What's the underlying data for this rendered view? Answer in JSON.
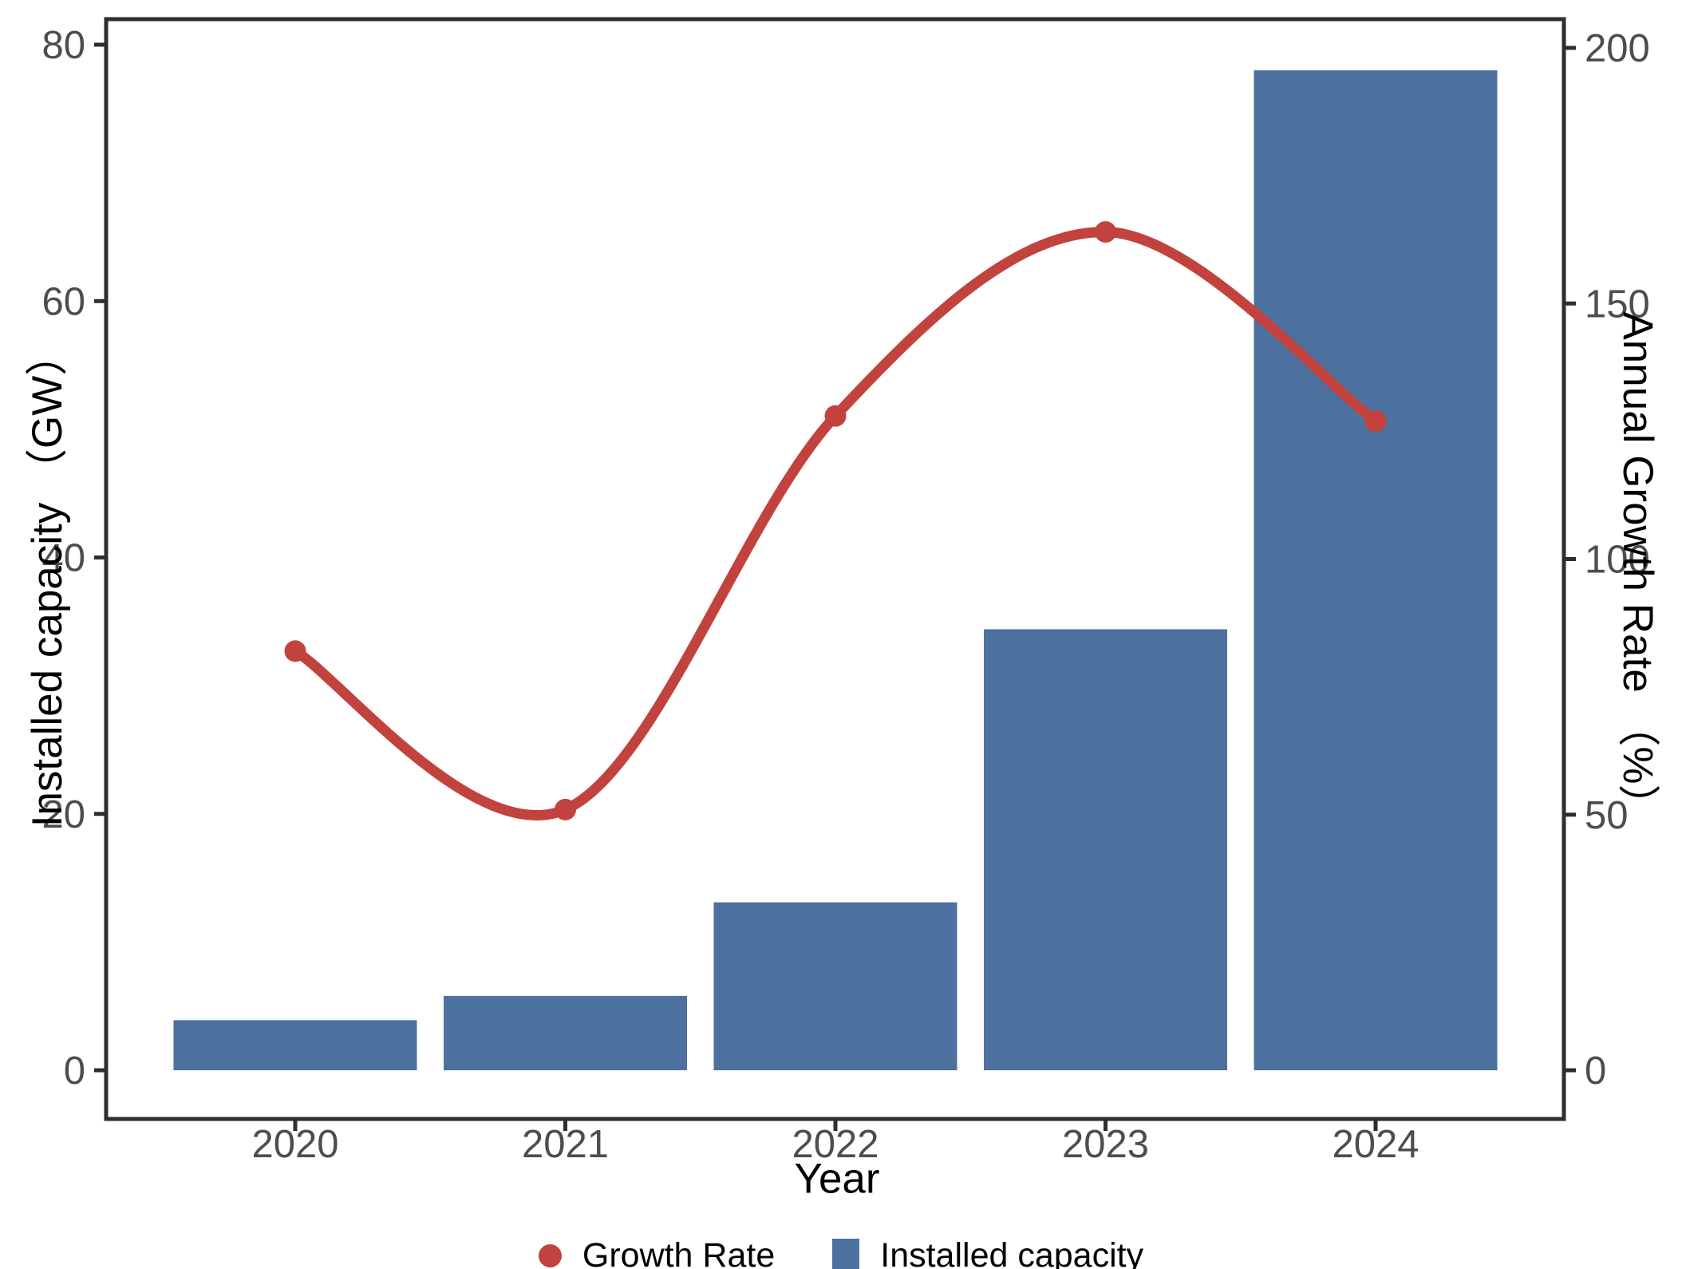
{
  "chart_data": {
    "type": "bar",
    "subtype": "dual-axis bar + smoothed line",
    "categories": [
      "2020",
      "2021",
      "2022",
      "2023",
      "2024"
    ],
    "series": [
      {
        "name": "Installed capacity",
        "type": "bar",
        "axis": "left",
        "unit": "GW",
        "values": [
          3.9,
          5.8,
          13.1,
          34.4,
          78.0
        ],
        "color": "#4d719e"
      },
      {
        "name": "Growth Rate",
        "type": "line",
        "axis": "right",
        "unit": "%",
        "values": [
          82,
          51,
          128,
          164,
          127
        ],
        "color": "#c2423e"
      }
    ],
    "title": "",
    "xlabel": "Year",
    "ylabel_left": "Installed capacity （GW）",
    "ylabel_right": "Annual Growth Rate （%）",
    "yticks_left": [
      0,
      20,
      40,
      60,
      80
    ],
    "yticks_right": [
      0,
      50,
      100,
      150,
      200
    ],
    "ylim_left": [
      0,
      80
    ],
    "ylim_right": [
      0,
      200
    ],
    "grid": "off",
    "panel_border": true,
    "legend_position": "bottom"
  },
  "legend": {
    "items": [
      {
        "label": "Growth Rate",
        "marker": "circle",
        "color": "#c2423e"
      },
      {
        "label": "Installed capacity",
        "marker": "square",
        "color": "#4d719e"
      }
    ]
  },
  "colors": {
    "bar": "#4d719e",
    "line": "#c2423e",
    "tick_label": "#4d4d4d",
    "axis_line": "#2e2e2e",
    "background": "#ffffff"
  }
}
